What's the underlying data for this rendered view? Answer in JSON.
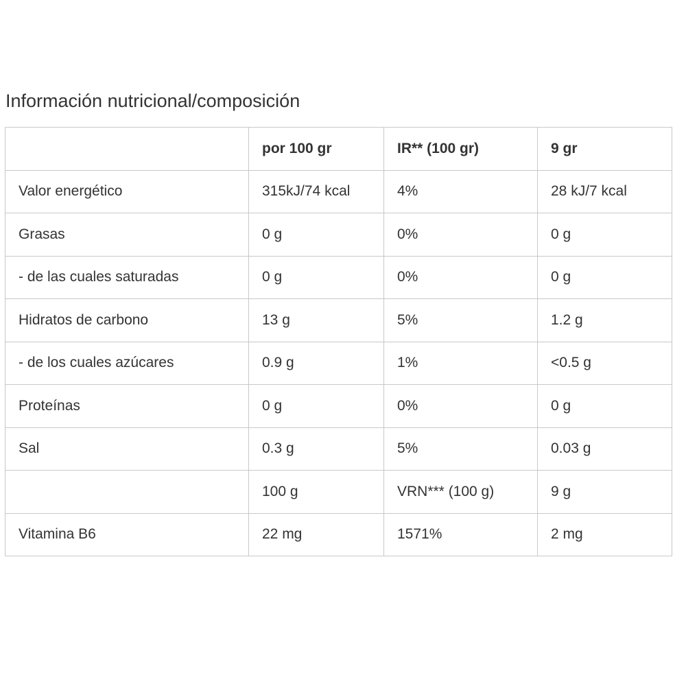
{
  "title": "Información nutricional/composición",
  "table": {
    "header": [
      "",
      "por 100 gr",
      "IR** (100 gr)",
      "9 gr"
    ],
    "rows": [
      [
        "Valor energético",
        "315kJ/74 kcal",
        "4%",
        "28 kJ/7 kcal"
      ],
      [
        "Grasas",
        "0 g",
        "0%",
        "0 g"
      ],
      [
        "- de las cuales saturadas",
        "0 g",
        "0%",
        "0 g"
      ],
      [
        "Hidratos de carbono",
        "13 g",
        "5%",
        "1.2 g"
      ],
      [
        "- de los cuales azúcares",
        "0.9 g",
        "1%",
        "<0.5 g"
      ],
      [
        "Proteínas",
        "0 g",
        "0%",
        "0 g"
      ],
      [
        "Sal",
        "0.3 g",
        "5%",
        "0.03 g"
      ],
      [
        "",
        "100 g",
        "VRN*** (100 g)",
        "9 g"
      ],
      [
        "Vitamina B6",
        "22 mg",
        "1571%",
        "2 mg"
      ]
    ]
  }
}
